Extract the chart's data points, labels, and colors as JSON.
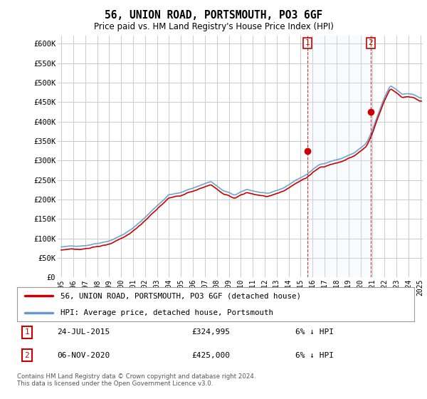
{
  "title": "56, UNION ROAD, PORTSMOUTH, PO3 6GF",
  "subtitle": "Price paid vs. HM Land Registry's House Price Index (HPI)",
  "ylim": [
    0,
    620000
  ],
  "yticks": [
    0,
    50000,
    100000,
    150000,
    200000,
    250000,
    300000,
    350000,
    400000,
    450000,
    500000,
    550000,
    600000
  ],
  "ytick_labels": [
    "£0",
    "£50K",
    "£100K",
    "£150K",
    "£200K",
    "£250K",
    "£300K",
    "£350K",
    "£400K",
    "£450K",
    "£500K",
    "£550K",
    "£600K"
  ],
  "background_color": "#ffffff",
  "plot_bg_color": "#ffffff",
  "grid_color": "#cccccc",
  "ann1_x": 2015.56,
  "ann1_y": 324995,
  "ann2_x": 2020.85,
  "ann2_y": 425000,
  "ann1_date": "24-JUL-2015",
  "ann1_price": "£324,995",
  "ann1_hpi": "6% ↓ HPI",
  "ann2_date": "06-NOV-2020",
  "ann2_price": "£425,000",
  "ann2_hpi": "6% ↓ HPI",
  "line1_label": "56, UNION ROAD, PORTSMOUTH, PO3 6GF (detached house)",
  "line1_color": "#cc0000",
  "line2_label": "HPI: Average price, detached house, Portsmouth",
  "line2_color": "#6699cc",
  "shade_color": "#ddeeff",
  "footer": "Contains HM Land Registry data © Crown copyright and database right 2024.\nThis data is licensed under the Open Government Licence v3.0.",
  "xmin": 1995.0,
  "xmax": 2025.2
}
